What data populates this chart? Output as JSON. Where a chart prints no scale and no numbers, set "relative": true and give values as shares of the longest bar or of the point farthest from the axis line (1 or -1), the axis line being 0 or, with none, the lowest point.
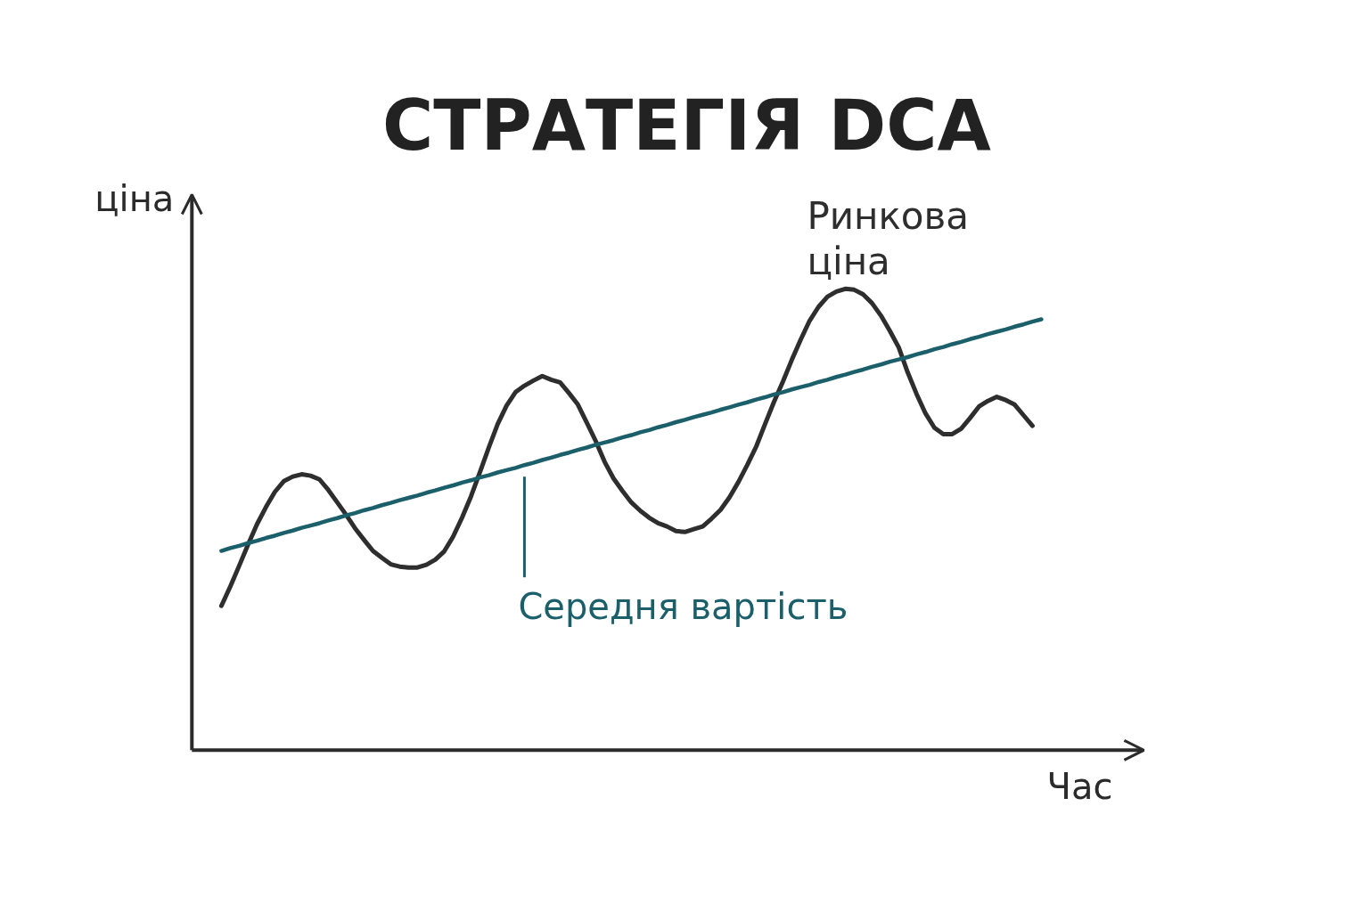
{
  "chart_data": {
    "type": "line",
    "title": "СТРАТЕГІЯ DCA",
    "xlabel": "Час",
    "ylabel": "ціна",
    "relative": true,
    "categories": [
      null,
      null,
      null,
      null,
      null,
      null,
      null,
      null,
      null,
      null,
      null,
      null,
      null,
      null,
      null,
      null,
      null,
      null,
      null,
      null,
      null,
      null,
      null,
      null,
      null,
      null,
      null,
      null,
      null,
      null,
      null,
      null,
      null,
      null,
      null,
      null,
      null,
      null,
      null,
      null,
      null,
      null,
      null,
      null,
      null,
      null,
      null,
      null,
      null,
      null,
      null,
      null,
      null,
      null,
      null,
      null,
      null,
      null,
      null,
      null,
      null,
      null,
      null,
      null,
      null,
      null,
      null,
      null,
      null,
      null,
      null,
      null,
      null,
      null,
      null,
      null,
      null,
      null,
      null,
      null,
      null,
      null,
      null,
      null,
      null,
      null,
      null,
      null,
      null,
      null,
      null,
      null,
      null
    ],
    "series": [
      {
        "name": "Ринкова ціна",
        "color": "#2e2e2e",
        "values": [
          0.313,
          0.355,
          0.4,
          0.446,
          0.49,
          0.527,
          0.56,
          0.583,
          0.593,
          0.598,
          0.595,
          0.587,
          0.564,
          0.537,
          0.51,
          0.481,
          0.456,
          0.432,
          0.417,
          0.403,
          0.398,
          0.396,
          0.396,
          0.402,
          0.413,
          0.431,
          0.463,
          0.504,
          0.55,
          0.602,
          0.656,
          0.707,
          0.747,
          0.776,
          0.79,
          0.801,
          0.811,
          0.803,
          0.797,
          0.774,
          0.749,
          0.71,
          0.67,
          0.625,
          0.589,
          0.562,
          0.537,
          0.519,
          0.504,
          0.492,
          0.485,
          0.475,
          0.473,
          0.479,
          0.485,
          0.502,
          0.521,
          0.548,
          0.581,
          0.618,
          0.658,
          0.707,
          0.755,
          0.799,
          0.846,
          0.89,
          0.931,
          0.961,
          0.983,
          0.994,
          1.0,
          0.998,
          0.988,
          0.969,
          0.942,
          0.909,
          0.873,
          0.819,
          0.772,
          0.73,
          0.699,
          0.685,
          0.685,
          0.697,
          0.72,
          0.745,
          0.757,
          0.766,
          0.759,
          0.749,
          0.726,
          0.703,
          null
        ]
      },
      {
        "name": "Середня вартість",
        "color": "#1b5f6b",
        "values": [
          0.432,
          0.438,
          0.443,
          0.449,
          0.454,
          0.46,
          0.465,
          0.471,
          0.476,
          0.482,
          0.487,
          0.492,
          0.498,
          0.503,
          0.509,
          0.514,
          0.52,
          0.525,
          0.531,
          0.536,
          0.542,
          0.547,
          0.552,
          0.558,
          0.563,
          0.569,
          0.574,
          0.58,
          0.585,
          0.591,
          0.596,
          0.602,
          0.607,
          0.612,
          0.618,
          0.623,
          0.629,
          0.634,
          0.64,
          0.645,
          0.651,
          0.656,
          0.662,
          0.667,
          0.672,
          0.678,
          0.683,
          0.689,
          0.694,
          0.7,
          0.705,
          0.711,
          0.716,
          0.722,
          0.727,
          0.732,
          0.738,
          0.743,
          0.749,
          0.754,
          0.76,
          0.765,
          0.771,
          0.776,
          0.782,
          0.787,
          0.792,
          0.798,
          0.803,
          0.809,
          0.814,
          0.82,
          0.825,
          0.831,
          0.836,
          0.842,
          0.847,
          0.852,
          0.858,
          0.863,
          0.869,
          0.874,
          0.88,
          0.885,
          0.891,
          0.896,
          0.902,
          0.907,
          0.912,
          0.918,
          0.923,
          0.929,
          0.934
        ]
      }
    ]
  }
}
